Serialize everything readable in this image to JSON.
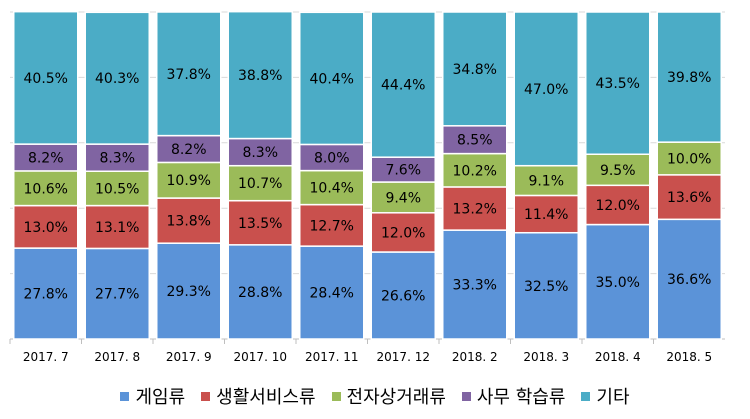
{
  "chart_data": {
    "type": "bar",
    "stacked": true,
    "categories": [
      "2017. 7",
      "2017. 8",
      "2017. 9",
      "2017. 10",
      "2017. 11",
      "2017. 12",
      "2018. 2",
      "2018. 3",
      "2018. 4",
      "2018. 5"
    ],
    "series": [
      {
        "name": "게임류",
        "color": "#5b93d8",
        "values": [
          27.8,
          27.7,
          29.3,
          28.8,
          28.4,
          26.6,
          33.3,
          32.5,
          35.0,
          36.6
        ]
      },
      {
        "name": "생활서비스류",
        "color": "#c9504d",
        "values": [
          13.0,
          13.1,
          13.8,
          13.5,
          12.7,
          12.0,
          13.2,
          11.4,
          12.0,
          13.6
        ]
      },
      {
        "name": "전자상거래류",
        "color": "#9bbb59",
        "values": [
          10.6,
          10.5,
          10.9,
          10.7,
          10.4,
          9.4,
          10.2,
          9.1,
          9.5,
          10.0
        ]
      },
      {
        "name": "사무 학습류",
        "color": "#8064a2",
        "values": [
          8.2,
          8.3,
          8.2,
          8.3,
          8.0,
          7.6,
          8.5,
          0,
          0,
          0
        ]
      },
      {
        "name": "기타",
        "color": "#4bacc6",
        "values": [
          40.5,
          40.3,
          37.8,
          38.8,
          40.4,
          44.4,
          34.8,
          47.0,
          43.5,
          39.8
        ]
      }
    ],
    "ylim": [
      0,
      100
    ],
    "grid": true,
    "legend_position": "bottom"
  }
}
